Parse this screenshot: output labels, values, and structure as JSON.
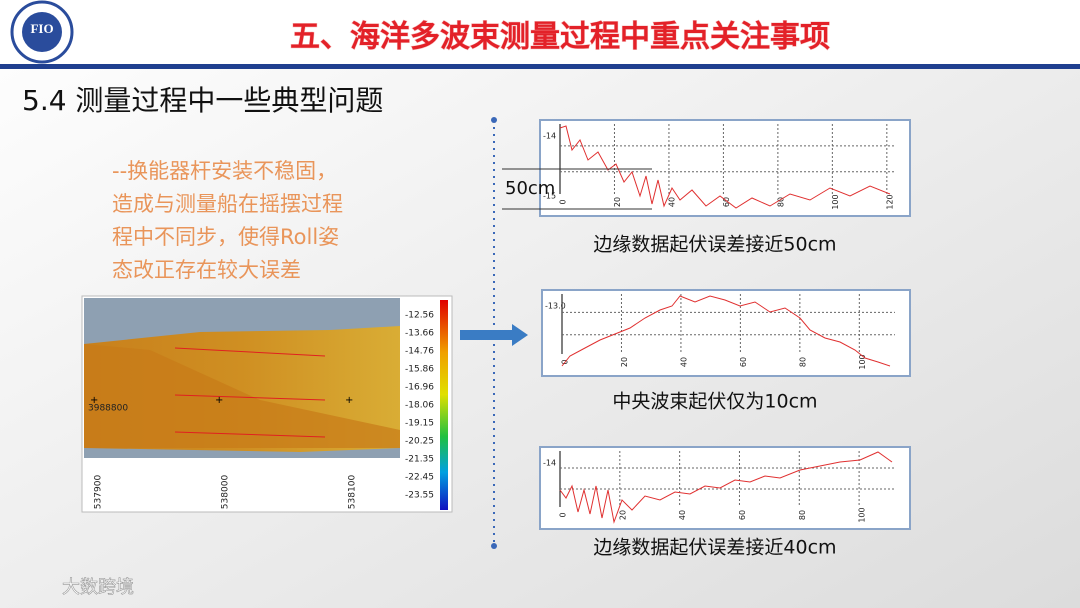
{
  "header": {
    "logo": "FIO",
    "title": "五、海洋多波束测量过程中重点关注事项"
  },
  "section": "5.4 测量过程中一些典型问题",
  "note": {
    "lines": [
      "--换能器杆安装不稳固，",
      "造成与测量船在摇摆过程",
      "程中不同步，使得Roll姿",
      "态改正存在较大误差"
    ]
  },
  "map": {
    "colorbar_labels": [
      "-12.56",
      "-13.66",
      "-14.76",
      "-15.86",
      "-16.96",
      "-18.06",
      "-19.15",
      "-20.25",
      "-21.35",
      "-22.45",
      "-23.55"
    ],
    "y_label": "3988800",
    "x_labels": [
      "537900",
      "538000",
      "538100"
    ]
  },
  "profiles": [
    {
      "y_labels": [
        "-14",
        "-15"
      ],
      "x_labels": [
        "0",
        "20",
        "40",
        "60",
        "80",
        "100",
        "120"
      ],
      "annotation": "50cm",
      "caption": "边缘数据起伏误差接近50cm"
    },
    {
      "y_labels": [
        "-13.0"
      ],
      "x_labels": [
        "0",
        "20",
        "40",
        "60",
        "80",
        "100"
      ],
      "caption": "中央波束起伏仅为10cm"
    },
    {
      "y_labels": [
        "-14"
      ],
      "x_labels": [
        "0",
        "20",
        "40",
        "60",
        "80",
        "100"
      ],
      "caption": "边缘数据起伏误差接近40cm"
    }
  ],
  "watermark": "大数跨境"
}
